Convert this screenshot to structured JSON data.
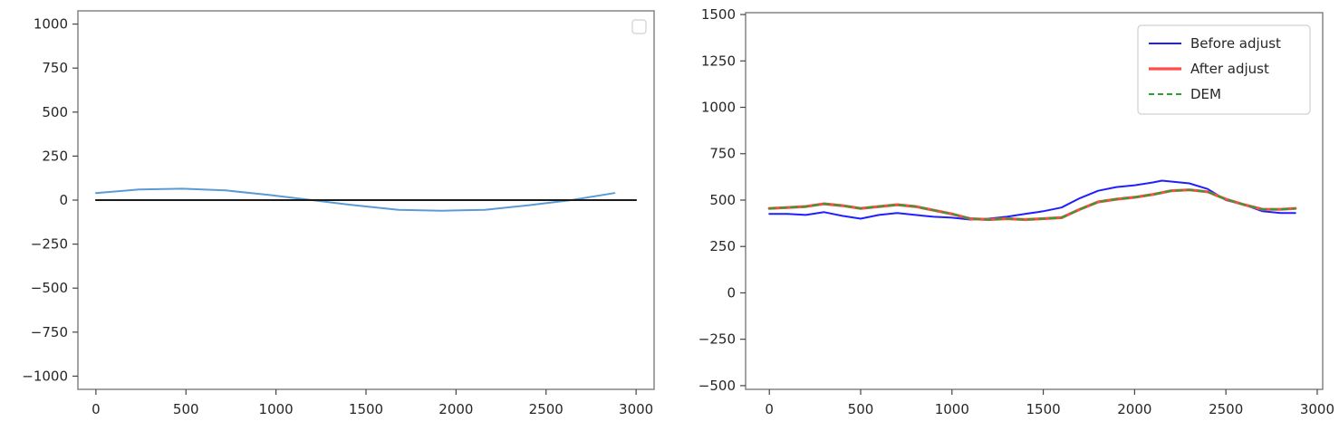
{
  "chart_data": [
    {
      "type": "line",
      "title": "",
      "xlabel": "",
      "ylabel": "",
      "xlim": [
        -100,
        3100
      ],
      "ylim": [
        -1075,
        1075
      ],
      "xticks": [
        0,
        500,
        1000,
        1500,
        2000,
        2500,
        3000
      ],
      "xtick_labels": [
        "0",
        "500",
        "1000",
        "1500",
        "2000",
        "2500",
        "3000"
      ],
      "yticks": [
        1000,
        750,
        500,
        250,
        0,
        -250,
        -500,
        -750,
        -1000
      ],
      "ytick_labels": [
        "1000",
        "750",
        "500",
        "250",
        "0",
        "−250",
        "−500",
        "−750",
        "−1000"
      ],
      "grid": false,
      "legend": {
        "visible": true,
        "placement": "top-right",
        "entries": []
      },
      "series": [
        {
          "color": "#5b9bd5",
          "style": "solid",
          "x": [
            0,
            240,
            480,
            720,
            960,
            1200,
            1440,
            1680,
            1920,
            2160,
            2400,
            2640,
            2880
          ],
          "y": [
            40,
            60,
            65,
            55,
            30,
            0,
            -30,
            -55,
            -60,
            -55,
            -30,
            0,
            40
          ]
        },
        {
          "color": "#1a1a1a",
          "style": "solid",
          "x": [
            0,
            3000
          ],
          "y": [
            0,
            0
          ]
        }
      ]
    },
    {
      "type": "line",
      "title": "",
      "xlabel": "",
      "ylabel": "",
      "xlim": [
        -130,
        3030
      ],
      "ylim": [
        -520,
        1510
      ],
      "xticks": [
        0,
        500,
        1000,
        1500,
        2000,
        2500,
        3000
      ],
      "xtick_labels": [
        "0",
        "500",
        "1000",
        "1500",
        "2000",
        "2500",
        "3000"
      ],
      "yticks": [
        1500,
        1250,
        1000,
        750,
        500,
        250,
        0,
        -250,
        -500
      ],
      "ytick_labels": [
        "1500",
        "1250",
        "1000",
        "750",
        "500",
        "250",
        "0",
        "−250",
        "−500"
      ],
      "grid": false,
      "legend": {
        "visible": true,
        "placement": "top-right",
        "entries": [
          {
            "label": "Before adjust",
            "color": "#1f1fff",
            "style": "solid"
          },
          {
            "label": "After adjust",
            "color": "#ff4d4d",
            "style": "solid-thick"
          },
          {
            "label": "DEM",
            "color": "#2ca02c",
            "style": "dashed"
          }
        ]
      },
      "series": [
        {
          "name": "Before adjust",
          "color": "#1f1fff",
          "style": "solid",
          "x": [
            0,
            100,
            200,
            300,
            400,
            500,
            600,
            700,
            800,
            900,
            1000,
            1100,
            1200,
            1300,
            1400,
            1500,
            1600,
            1700,
            1800,
            1900,
            2000,
            2100,
            2150,
            2200,
            2300,
            2400,
            2500,
            2600,
            2700,
            2800,
            2880
          ],
          "y": [
            425,
            425,
            420,
            435,
            415,
            400,
            420,
            430,
            420,
            410,
            405,
            395,
            400,
            410,
            425,
            440,
            460,
            510,
            550,
            570,
            580,
            595,
            605,
            600,
            590,
            560,
            500,
            475,
            440,
            430,
            430
          ]
        },
        {
          "name": "After adjust",
          "color": "#ff4d4d",
          "style": "solid-thick",
          "x": [
            0,
            100,
            200,
            300,
            400,
            500,
            600,
            700,
            800,
            900,
            1000,
            1100,
            1200,
            1300,
            1400,
            1500,
            1600,
            1700,
            1800,
            1900,
            2000,
            2100,
            2200,
            2300,
            2400,
            2500,
            2600,
            2700,
            2800,
            2880
          ],
          "y": [
            455,
            460,
            465,
            480,
            470,
            455,
            465,
            475,
            465,
            445,
            425,
            400,
            395,
            400,
            395,
            400,
            405,
            450,
            490,
            505,
            515,
            530,
            550,
            555,
            545,
            505,
            475,
            450,
            450,
            455
          ]
        },
        {
          "name": "DEM",
          "color": "#2ca02c",
          "style": "dashed",
          "x": [
            0,
            100,
            200,
            300,
            400,
            500,
            600,
            700,
            800,
            900,
            1000,
            1100,
            1200,
            1300,
            1400,
            1500,
            1600,
            1700,
            1800,
            1900,
            2000,
            2100,
            2200,
            2300,
            2400,
            2500,
            2600,
            2700,
            2800,
            2880
          ],
          "y": [
            455,
            460,
            465,
            480,
            470,
            455,
            465,
            475,
            465,
            445,
            425,
            400,
            395,
            400,
            395,
            400,
            405,
            450,
            490,
            505,
            515,
            530,
            550,
            555,
            545,
            505,
            475,
            450,
            450,
            455
          ]
        }
      ]
    }
  ]
}
